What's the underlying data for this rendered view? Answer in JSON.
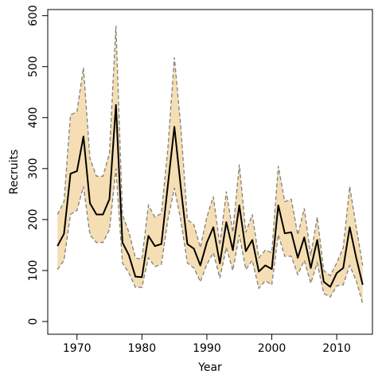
{
  "chart_data": {
    "type": "line",
    "title": "",
    "xlabel": "Year",
    "ylabel": "Recruits",
    "xlim": [
      1965.5,
      2015.5
    ],
    "ylim": [
      -25,
      612
    ],
    "xticks": [
      1970,
      1980,
      1990,
      2000,
      2010
    ],
    "yticks": [
      0,
      100,
      200,
      300,
      400,
      500,
      600
    ],
    "grid": false,
    "legend": "none",
    "colors": {
      "band": "#f5deb3",
      "bound_line": "#808080",
      "median_line": "#000000"
    },
    "x": [
      1967,
      1968,
      1969,
      1970,
      1971,
      1972,
      1973,
      1974,
      1975,
      1976,
      1977,
      1978,
      1979,
      1980,
      1981,
      1982,
      1983,
      1984,
      1985,
      1986,
      1987,
      1988,
      1989,
      1990,
      1991,
      1992,
      1993,
      1994,
      1995,
      1996,
      1997,
      1998,
      1999,
      2000,
      2001,
      2002,
      2003,
      2004,
      2005,
      2006,
      2007,
      2008,
      2009,
      2010,
      2011,
      2012,
      2013,
      2014
    ],
    "series": [
      {
        "name": "",
        "role": "upper",
        "values": [
          210,
          235,
          405,
          412,
          498,
          320,
          285,
          285,
          330,
          580,
          210,
          175,
          125,
          122,
          228,
          205,
          212,
          340,
          518,
          380,
          200,
          190,
          145,
          205,
          245,
          150,
          255,
          175,
          308,
          175,
          210,
          125,
          140,
          135,
          305,
          235,
          240,
          170,
          222,
          130,
          205,
          100,
          90,
          115,
          145,
          265,
          185,
          110
        ]
      },
      {
        "name": "",
        "role": "median",
        "values": [
          148,
          172,
          290,
          295,
          363,
          232,
          210,
          210,
          240,
          425,
          155,
          130,
          88,
          87,
          168,
          148,
          152,
          268,
          382,
          262,
          152,
          143,
          110,
          155,
          185,
          114,
          195,
          140,
          228,
          138,
          160,
          98,
          110,
          103,
          228,
          173,
          175,
          125,
          165,
          105,
          160,
          78,
          68,
          95,
          105,
          185,
          125,
          72
        ]
      },
      {
        "name": "",
        "role": "lower",
        "values": [
          102,
          120,
          210,
          218,
          265,
          170,
          155,
          155,
          180,
          300,
          115,
          95,
          67,
          67,
          125,
          108,
          112,
          200,
          262,
          198,
          115,
          105,
          78,
          112,
          135,
          85,
          145,
          100,
          170,
          102,
          120,
          65,
          80,
          72,
          170,
          128,
          128,
          92,
          120,
          75,
          115,
          55,
          48,
          70,
          72,
          110,
          80,
          35
        ]
      }
    ]
  }
}
